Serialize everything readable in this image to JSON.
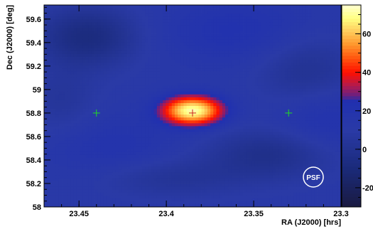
{
  "chart_data": {
    "type": "heatmap",
    "title": "",
    "xlabel": "RA (J2000) [hrs]",
    "ylabel": "Dec (J2000) [deg]",
    "xlim": [
      23.47,
      23.3
    ],
    "ylim": [
      58.0,
      59.72
    ],
    "x_ticks": [
      {
        "value": 23.45,
        "label": "23.45"
      },
      {
        "value": 23.4,
        "label": "23.4"
      },
      {
        "value": 23.35,
        "label": "23.35"
      },
      {
        "value": 23.3,
        "label": "23.3"
      }
    ],
    "y_ticks": [
      {
        "value": 58.0,
        "label": "58"
      },
      {
        "value": 58.2,
        "label": "58.2"
      },
      {
        "value": 58.4,
        "label": "58.4"
      },
      {
        "value": 58.6,
        "label": "58.6"
      },
      {
        "value": 58.8,
        "label": "58.8"
      },
      {
        "value": 59.0,
        "label": "59"
      },
      {
        "value": 59.2,
        "label": "59.2"
      },
      {
        "value": 59.4,
        "label": "59.4"
      },
      {
        "value": 59.6,
        "label": "59.6"
      }
    ],
    "colorbar": {
      "range": [
        -30,
        75
      ],
      "ticks": [
        {
          "value": 60,
          "label": "60"
        },
        {
          "value": 40,
          "label": "40"
        },
        {
          "value": 20,
          "label": "20"
        },
        {
          "value": 0,
          "label": "0"
        },
        {
          "value": -20,
          "label": "-20"
        }
      ],
      "stops": [
        {
          "value": -30,
          "color": "#1a1a40"
        },
        {
          "value": -10,
          "color": "#1a2a7a"
        },
        {
          "value": 10,
          "color": "#2a3aa6"
        },
        {
          "value": 25,
          "color": "#2030b0"
        },
        {
          "value": 28,
          "color": "#6a2080"
        },
        {
          "value": 33,
          "color": "#b01a50"
        },
        {
          "value": 40,
          "color": "#ff1000"
        },
        {
          "value": 48,
          "color": "#ff5a10"
        },
        {
          "value": 55,
          "color": "#ff9a30"
        },
        {
          "value": 62,
          "color": "#ffd060"
        },
        {
          "value": 68,
          "color": "#ffff80"
        },
        {
          "value": 75,
          "color": "#ffffd0"
        }
      ]
    },
    "source": {
      "x": 23.385,
      "y": 58.82,
      "peak": 72,
      "sigma_x": 0.012,
      "sigma_y": 0.085
    },
    "background_blobs": [
      {
        "x": 23.445,
        "y": 59.45,
        "amp": -20,
        "sx": 0.02,
        "sy": 0.18
      },
      {
        "x": 23.36,
        "y": 59.5,
        "amp": 10,
        "sx": 0.03,
        "sy": 0.2
      },
      {
        "x": 23.32,
        "y": 59.15,
        "amp": -12,
        "sx": 0.02,
        "sy": 0.22
      },
      {
        "x": 23.43,
        "y": 58.5,
        "amp": 8,
        "sx": 0.025,
        "sy": 0.2
      },
      {
        "x": 23.34,
        "y": 58.45,
        "amp": -15,
        "sx": 0.025,
        "sy": 0.15
      },
      {
        "x": 23.4,
        "y": 58.25,
        "amp": -10,
        "sx": 0.03,
        "sy": 0.12
      },
      {
        "x": 23.31,
        "y": 58.75,
        "amp": 10,
        "sx": 0.02,
        "sy": 0.2
      },
      {
        "x": 23.46,
        "y": 58.9,
        "amp": -8,
        "sx": 0.015,
        "sy": 0.2
      }
    ],
    "background_level": 12,
    "markers": [
      {
        "x": 23.44,
        "y": 58.8,
        "color": "#22dd22"
      },
      {
        "x": 23.385,
        "y": 58.8,
        "color": "#cc2222"
      },
      {
        "x": 23.33,
        "y": 58.8,
        "color": "#22dd22"
      }
    ],
    "psf_label": "PSF"
  }
}
